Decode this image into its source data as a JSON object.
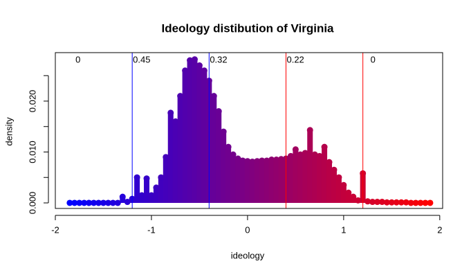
{
  "chart_data": {
    "type": "density-spikes",
    "title": "Ideology distibution of Virginia",
    "xlabel": "ideology",
    "ylabel": "density",
    "color_low": "#0000ff",
    "color_high": "#ff0000",
    "x": [
      -1.85,
      -1.8,
      -1.75,
      -1.7,
      -1.65,
      -1.6,
      -1.55,
      -1.5,
      -1.45,
      -1.4,
      -1.35,
      -1.3,
      -1.25,
      -1.2,
      -1.15,
      -1.1,
      -1.05,
      -1.0,
      -0.95,
      -0.9,
      -0.85,
      -0.8,
      -0.75,
      -0.7,
      -0.65,
      -0.6,
      -0.55,
      -0.5,
      -0.45,
      -0.4,
      -0.35,
      -0.3,
      -0.25,
      -0.2,
      -0.15,
      -0.1,
      -0.05,
      0,
      0.05,
      0.1,
      0.15,
      0.2,
      0.25,
      0.3,
      0.35,
      0.4,
      0.45,
      0.5,
      0.55,
      0.6,
      0.65,
      0.7,
      0.75,
      0.8,
      0.85,
      0.9,
      0.95,
      1.0,
      1.05,
      1.1,
      1.15,
      1.2,
      1.25,
      1.3,
      1.35,
      1.4,
      1.45,
      1.5,
      1.55,
      1.6,
      1.65,
      1.7,
      1.75,
      1.8,
      1.85,
      1.9
    ],
    "values": [
      0,
      0,
      0,
      0,
      0,
      0,
      0,
      0,
      0,
      0,
      0,
      0.0012,
      0.0002,
      0.0008,
      0.005,
      0.0015,
      0.0048,
      0.0015,
      0.003,
      0.005,
      0.009,
      0.0177,
      0.016,
      0.021,
      0.026,
      0.028,
      0.0282,
      0.027,
      0.026,
      0.024,
      0.021,
      0.018,
      0.014,
      0.011,
      0.0095,
      0.0087,
      0.0083,
      0.0082,
      0.0081,
      0.0082,
      0.0083,
      0.0083,
      0.0085,
      0.0085,
      0.0086,
      0.0087,
      0.0092,
      0.0105,
      0.0095,
      0.0098,
      0.0143,
      0.0095,
      0.0092,
      0.011,
      0.008,
      0.0065,
      0.005,
      0.0035,
      0.002,
      0.0012,
      0.0005,
      0.0058,
      0.0003,
      0.0002,
      0.0002,
      0.0002,
      0.0001,
      0.0001,
      0.0001,
      0.0001,
      0.0001,
      0,
      0,
      0,
      0,
      0
    ],
    "cutoffs": [
      -1.2,
      -0.4,
      0.4,
      1.2
    ],
    "cutoff_colors": [
      "#0000ff",
      "#0000ff",
      "#ff0000",
      "#ff0000"
    ],
    "region_labels": [
      0,
      0.45,
      0.32,
      0.22,
      0
    ],
    "xlim": [
      -2,
      2.03
    ],
    "xticks": [
      -2,
      -1,
      0,
      1,
      2
    ],
    "ylim": [
      -0.00109,
      0.02952
    ],
    "yticks": [
      {
        "value": 0,
        "label": "0.000"
      },
      {
        "value": 0.01,
        "label": "0.010"
      },
      {
        "value": 0.02,
        "label": "0.020"
      }
    ],
    "yminor_ticks": [
      0.005,
      0.015,
      0.025
    ]
  }
}
